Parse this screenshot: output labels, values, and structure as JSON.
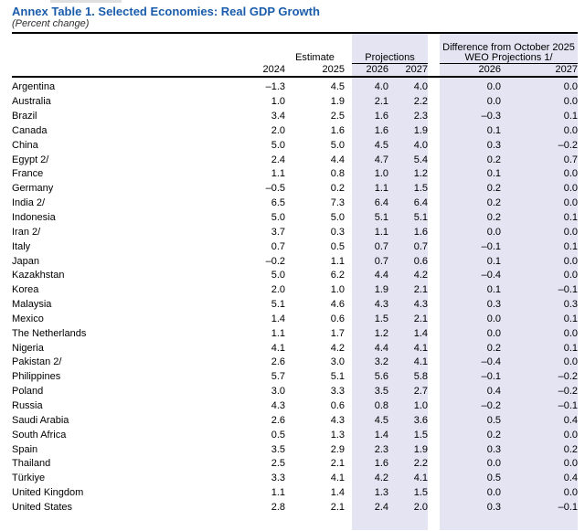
{
  "document": {
    "title": "Annex Table 1. Selected Economies: Real GDP Growth",
    "subtitle": "(Percent change)"
  },
  "colors": {
    "title_blue": "#1a5cab",
    "column_shade": "#e4e4f3"
  },
  "header": {
    "estimate_label": "Estimate",
    "projections_label": "Projections",
    "difference_label_line1": "Difference from October 2025",
    "difference_label_line2": "WEO Projections 1/",
    "years": [
      "2024",
      "2025",
      "2026",
      "2027",
      "2026",
      "2027"
    ]
  },
  "rows": [
    {
      "country": "Argentina",
      "values": [
        "–1.3",
        "4.5",
        "4.0",
        "4.0",
        "0.0",
        "0.0"
      ]
    },
    {
      "country": "Australia",
      "values": [
        "1.0",
        "1.9",
        "2.1",
        "2.2",
        "0.0",
        "0.0"
      ]
    },
    {
      "country": "Brazil",
      "values": [
        "3.4",
        "2.5",
        "1.6",
        "2.3",
        "–0.3",
        "0.1"
      ]
    },
    {
      "country": "Canada",
      "values": [
        "2.0",
        "1.6",
        "1.6",
        "1.9",
        "0.1",
        "0.0"
      ]
    },
    {
      "country": "China",
      "values": [
        "5.0",
        "5.0",
        "4.5",
        "4.0",
        "0.3",
        "–0.2"
      ]
    },
    {
      "country": "Egypt 2/",
      "values": [
        "2.4",
        "4.4",
        "4.7",
        "5.4",
        "0.2",
        "0.7"
      ]
    },
    {
      "country": "France",
      "values": [
        "1.1",
        "0.8",
        "1.0",
        "1.2",
        "0.1",
        "0.0"
      ]
    },
    {
      "country": "Germany",
      "values": [
        "–0.5",
        "0.2",
        "1.1",
        "1.5",
        "0.2",
        "0.0"
      ]
    },
    {
      "country": "India 2/",
      "values": [
        "6.5",
        "7.3",
        "6.4",
        "6.4",
        "0.2",
        "0.0"
      ]
    },
    {
      "country": "Indonesia",
      "values": [
        "5.0",
        "5.0",
        "5.1",
        "5.1",
        "0.2",
        "0.1"
      ]
    },
    {
      "country": "Iran 2/",
      "values": [
        "3.7",
        "0.3",
        "1.1",
        "1.6",
        "0.0",
        "0.0"
      ]
    },
    {
      "country": "Italy",
      "values": [
        "0.7",
        "0.5",
        "0.7",
        "0.7",
        "–0.1",
        "0.1"
      ]
    },
    {
      "country": "Japan",
      "values": [
        "–0.2",
        "1.1",
        "0.7",
        "0.6",
        "0.1",
        "0.0"
      ]
    },
    {
      "country": "Kazakhstan",
      "values": [
        "5.0",
        "6.2",
        "4.4",
        "4.2",
        "–0.4",
        "0.0"
      ]
    },
    {
      "country": "Korea",
      "values": [
        "2.0",
        "1.0",
        "1.9",
        "2.1",
        "0.1",
        "–0.1"
      ]
    },
    {
      "country": "Malaysia",
      "values": [
        "5.1",
        "4.6",
        "4.3",
        "4.3",
        "0.3",
        "0.3"
      ]
    },
    {
      "country": "Mexico",
      "values": [
        "1.4",
        "0.6",
        "1.5",
        "2.1",
        "0.0",
        "0.1"
      ]
    },
    {
      "country": "The Netherlands",
      "values": [
        "1.1",
        "1.7",
        "1.2",
        "1.4",
        "0.0",
        "0.0"
      ]
    },
    {
      "country": "Nigeria",
      "values": [
        "4.1",
        "4.2",
        "4.4",
        "4.1",
        "0.2",
        "0.1"
      ]
    },
    {
      "country": "Pakistan 2/",
      "values": [
        "2.6",
        "3.0",
        "3.2",
        "4.1",
        "–0.4",
        "0.0"
      ]
    },
    {
      "country": "Philippines",
      "values": [
        "5.7",
        "5.1",
        "5.6",
        "5.8",
        "–0.1",
        "–0.2"
      ]
    },
    {
      "country": "Poland",
      "values": [
        "3.0",
        "3.3",
        "3.5",
        "2.7",
        "0.4",
        "–0.2"
      ]
    },
    {
      "country": "Russia",
      "values": [
        "4.3",
        "0.6",
        "0.8",
        "1.0",
        "–0.2",
        "–0.1"
      ]
    },
    {
      "country": "Saudi Arabia",
      "values": [
        "2.6",
        "4.3",
        "4.5",
        "3.6",
        "0.5",
        "0.4"
      ]
    },
    {
      "country": "South Africa",
      "values": [
        "0.5",
        "1.3",
        "1.4",
        "1.5",
        "0.2",
        "0.0"
      ]
    },
    {
      "country": "Spain",
      "values": [
        "3.5",
        "2.9",
        "2.3",
        "1.9",
        "0.3",
        "0.2"
      ]
    },
    {
      "country": "Thailand",
      "values": [
        "2.5",
        "2.1",
        "1.6",
        "2.2",
        "0.0",
        "0.0"
      ]
    },
    {
      "country": "Türkiye",
      "values": [
        "3.3",
        "4.1",
        "4.2",
        "4.1",
        "0.5",
        "0.4"
      ]
    },
    {
      "country": "United Kingdom",
      "values": [
        "1.1",
        "1.4",
        "1.3",
        "1.5",
        "0.0",
        "0.0"
      ]
    },
    {
      "country": "United States",
      "values": [
        "2.8",
        "2.1",
        "2.4",
        "2.0",
        "0.3",
        "–0.1"
      ]
    }
  ]
}
